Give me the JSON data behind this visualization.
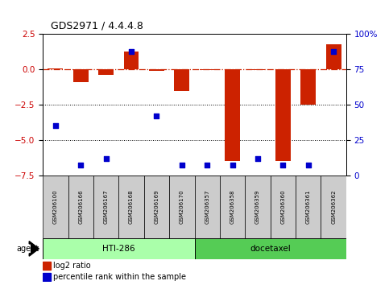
{
  "title": "GDS2971 / 4.4.4.8",
  "samples": [
    "GSM206100",
    "GSM206166",
    "GSM206167",
    "GSM206168",
    "GSM206169",
    "GSM206170",
    "GSM206357",
    "GSM206358",
    "GSM206359",
    "GSM206360",
    "GSM206361",
    "GSM206362"
  ],
  "log2_ratio": [
    0.05,
    -0.9,
    -0.4,
    1.3,
    -0.1,
    -1.5,
    -0.05,
    -6.5,
    -0.05,
    -6.5,
    -2.5,
    1.8
  ],
  "percentile_rank": [
    35,
    7,
    12,
    88,
    42,
    7,
    7,
    7,
    12,
    7,
    7,
    88
  ],
  "group1_label": "HTI-286",
  "group2_label": "docetaxel",
  "group1_count": 6,
  "group2_count": 6,
  "ylim": [
    -7.5,
    2.5
  ],
  "yticks_left": [
    -7.5,
    -5.0,
    -2.5,
    0.0,
    2.5
  ],
  "yticks_right": [
    0,
    25,
    50,
    75,
    100
  ],
  "hline_y": 0.0,
  "dotted_lines": [
    -2.5,
    -5.0
  ],
  "bar_color": "#cc2200",
  "dot_color": "#0000cc",
  "group1_color": "#aaffaa",
  "group2_color": "#55cc55",
  "sample_box_color": "#cccccc",
  "ylabel_left_color": "#cc0000",
  "ylabel_right_color": "#0000cc",
  "agent_label": "agent",
  "legend_bar_label": "log2 ratio",
  "legend_dot_label": "percentile rank within the sample",
  "bar_width": 0.6
}
